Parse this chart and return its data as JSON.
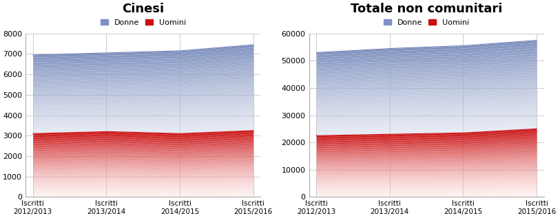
{
  "cinesi": {
    "title": "Cinesi",
    "categories": [
      "Iscritti\n2012/2013",
      "Iscritti\n2013/2014",
      "Iscritti\n2014/2015",
      "Iscritti\n2015/2016"
    ],
    "uomini": [
      3100,
      3200,
      3100,
      3250
    ],
    "donne_total": [
      6950,
      7050,
      7150,
      7450
    ],
    "ylim": [
      0,
      8000
    ],
    "yticks": [
      0,
      1000,
      2000,
      3000,
      4000,
      5000,
      6000,
      7000,
      8000
    ]
  },
  "totale": {
    "title": "Totale non comunitari",
    "categories": [
      "Iscritti\n2012/2013",
      "Iscritti\n2013/2014",
      "Iscritti\n2014/2015",
      "Iscritti\n2015/2016"
    ],
    "uomini": [
      22500,
      23000,
      23500,
      25000
    ],
    "donne_total": [
      53000,
      54500,
      55500,
      57500
    ],
    "ylim": [
      0,
      60000
    ],
    "yticks": [
      0,
      10000,
      20000,
      30000,
      40000,
      50000,
      60000
    ]
  },
  "legend_labels": [
    "Donne",
    "Uomini"
  ],
  "color_donne_top": "#8090c0",
  "color_donne_mid": "#b0bcd8",
  "color_uomini_top": "#cc1010",
  "color_uomini_mid": "#dd3030",
  "bg_color": "#ffffff",
  "grid_color": "#cccccc",
  "gradient_steps": 60
}
